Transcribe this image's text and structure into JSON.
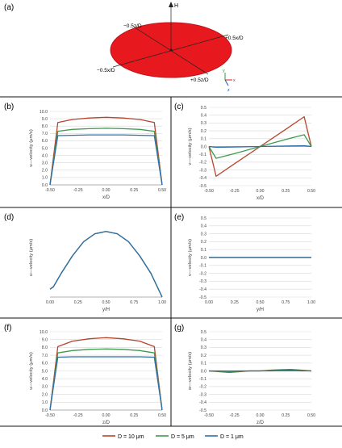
{
  "panels": {
    "a": "(a)",
    "b": "(b)",
    "c": "(c)",
    "d": "(d)",
    "e": "(e)",
    "f": "(f)",
    "g": "(g)"
  },
  "disk": {
    "fill_color": "#e8191e",
    "labels": {
      "H": "H",
      "top_left": "−0.5z/D",
      "right": "+0.5x/D",
      "left": "−0.5x/D",
      "bottom_right": "+0.5z/D",
      "axis_y": "y",
      "axis_x": "x",
      "axis_z": "z"
    }
  },
  "legend": {
    "entries": [
      {
        "label": "D = 10 μm",
        "color": "#b5452d"
      },
      {
        "label": "D = 5 μm",
        "color": "#3e9b4c"
      },
      {
        "label": "D = 1 μm",
        "color": "#2f6fae"
      }
    ]
  },
  "chart_data": [
    {
      "panel": "b",
      "type": "line",
      "xlabel": "x/D",
      "ylabel": "u—velocity (μm/s)",
      "xlim": [
        -0.5,
        0.5
      ],
      "ylim": [
        0,
        10
      ],
      "xticks": [
        "-0.50",
        "-0.25",
        "0.00",
        "0.25",
        "0.50"
      ],
      "yticks": [
        "0.0",
        "1.0",
        "2.0",
        "3.0",
        "4.0",
        "5.0",
        "6.0",
        "7.0",
        "8.0",
        "9.0",
        "10.0"
      ],
      "series": [
        {
          "name": "D = 10 μm",
          "color": "#b5452d",
          "x": [
            -0.5,
            -0.43,
            -0.3,
            -0.15,
            0,
            0.15,
            0.3,
            0.43,
            0.5
          ],
          "y": [
            0,
            8.5,
            8.9,
            9.1,
            9.2,
            9.1,
            8.9,
            8.5,
            0
          ]
        },
        {
          "name": "D = 5 μm",
          "color": "#3e9b4c",
          "x": [
            -0.5,
            -0.43,
            -0.3,
            -0.15,
            0,
            0.15,
            0.3,
            0.43,
            0.5
          ],
          "y": [
            0,
            7.3,
            7.55,
            7.65,
            7.7,
            7.65,
            7.55,
            7.3,
            0
          ]
        },
        {
          "name": "D = 1 μm",
          "color": "#2f6fae",
          "x": [
            -0.5,
            -0.43,
            -0.3,
            -0.15,
            0,
            0.15,
            0.3,
            0.43,
            0.5
          ],
          "y": [
            0,
            6.7,
            6.75,
            6.8,
            6.8,
            6.8,
            6.75,
            6.7,
            0
          ]
        }
      ]
    },
    {
      "panel": "c",
      "type": "line",
      "xlabel": "x/D",
      "ylabel": "v—velocity (μm/s)",
      "xlim": [
        -0.5,
        0.5
      ],
      "ylim": [
        -0.5,
        0.5
      ],
      "xticks": [
        "-0.50",
        "-0.25",
        "0.00",
        "0.25",
        "0.50"
      ],
      "yticks": [
        "-0.5",
        "-0.4",
        "-0.3",
        "-0.2",
        "-0.1",
        "0.0",
        "0.1",
        "0.2",
        "0.3",
        "0.4",
        "0.5"
      ],
      "series": [
        {
          "name": "D = 10 μm",
          "color": "#b5452d",
          "x": [
            -0.5,
            -0.43,
            -0.25,
            0,
            0.25,
            0.43,
            0.5
          ],
          "y": [
            0,
            -0.38,
            -0.22,
            0,
            0.22,
            0.38,
            0
          ]
        },
        {
          "name": "D = 5 μm",
          "color": "#3e9b4c",
          "x": [
            -0.5,
            -0.43,
            -0.25,
            0,
            0.25,
            0.43,
            0.5
          ],
          "y": [
            0,
            -0.15,
            -0.09,
            0,
            0.09,
            0.15,
            0
          ]
        },
        {
          "name": "D = 1 μm",
          "color": "#2f6fae",
          "x": [
            -0.5,
            -0.43,
            -0.25,
            0,
            0.25,
            0.43,
            0.5
          ],
          "y": [
            0,
            -0.01,
            -0.006,
            0,
            0.006,
            0.01,
            0
          ]
        }
      ]
    },
    {
      "panel": "d",
      "type": "line",
      "xlabel": "y/H",
      "ylabel": "u—velocity (μm/s)",
      "xlim": [
        0,
        1
      ],
      "ylim": [
        0,
        100
      ],
      "xticks": [
        "0.00",
        "0.25",
        "0.50",
        "0.75",
        "1.00"
      ],
      "yticks": [],
      "series": [
        {
          "name": "D = 10 μm",
          "color": "#b5452d",
          "x": [
            0,
            0.03,
            0.1,
            0.2,
            0.3,
            0.4,
            0.5,
            0.6,
            0.7,
            0.8,
            0.9,
            1.0
          ],
          "y": [
            10,
            13,
            30,
            52,
            70,
            80,
            83,
            80,
            70,
            52,
            30,
            0
          ]
        },
        {
          "name": "D = 5 μm",
          "color": "#3e9b4c",
          "x": [
            0,
            0.03,
            0.1,
            0.2,
            0.3,
            0.4,
            0.5,
            0.6,
            0.7,
            0.8,
            0.9,
            1.0
          ],
          "y": [
            10,
            13,
            30,
            52,
            70,
            80,
            83,
            80,
            70,
            52,
            30,
            0
          ]
        },
        {
          "name": "D = 1 μm",
          "color": "#2f6fae",
          "x": [
            0,
            0.03,
            0.1,
            0.2,
            0.3,
            0.4,
            0.5,
            0.6,
            0.7,
            0.8,
            0.9,
            1.0
          ],
          "y": [
            10,
            13,
            30,
            52,
            70,
            80,
            83,
            80,
            70,
            52,
            30,
            0
          ]
        }
      ]
    },
    {
      "panel": "e",
      "type": "line",
      "xlabel": "y/H",
      "ylabel": "v—velocity (μm/s)",
      "xlim": [
        0,
        1
      ],
      "ylim": [
        -0.5,
        0.5
      ],
      "xticks": [
        "0.00",
        "0.25",
        "0.50",
        "0.75",
        "1.00"
      ],
      "yticks": [
        "-0.5",
        "-0.4",
        "-0.3",
        "-0.2",
        "-0.1",
        "0.0",
        "0.1",
        "0.2",
        "0.3",
        "0.4",
        "0.5"
      ],
      "series": [
        {
          "name": "D = 10 μm",
          "color": "#b5452d",
          "x": [
            0,
            1
          ],
          "y": [
            0,
            0
          ]
        },
        {
          "name": "D = 5 μm",
          "color": "#3e9b4c",
          "x": [
            0,
            1
          ],
          "y": [
            0,
            0
          ]
        },
        {
          "name": "D = 1 μm",
          "color": "#2f6fae",
          "x": [
            0,
            1
          ],
          "y": [
            0,
            0
          ]
        }
      ]
    },
    {
      "panel": "f",
      "type": "line",
      "xlabel": "z/D",
      "ylabel": "u—velocity (μm/s)",
      "xlim": [
        -0.5,
        0.5
      ],
      "ylim": [
        0,
        10
      ],
      "xticks": [
        "-0.50",
        "-0.25",
        "0.00",
        "0.25",
        "0.50"
      ],
      "yticks": [
        "0.0",
        "1.0",
        "2.0",
        "3.0",
        "4.0",
        "5.0",
        "6.0",
        "7.0",
        "8.0",
        "9.0",
        "10.0"
      ],
      "series": [
        {
          "name": "D = 10 μm",
          "color": "#b5452d",
          "x": [
            -0.5,
            -0.43,
            -0.3,
            -0.15,
            0,
            0.15,
            0.3,
            0.43,
            0.5
          ],
          "y": [
            0,
            8.1,
            8.8,
            9.1,
            9.25,
            9.1,
            8.8,
            8.1,
            0
          ]
        },
        {
          "name": "D = 5 μm",
          "color": "#3e9b4c",
          "x": [
            -0.5,
            -0.43,
            -0.3,
            -0.15,
            0,
            0.15,
            0.3,
            0.43,
            0.5
          ],
          "y": [
            0,
            7.3,
            7.6,
            7.75,
            7.8,
            7.75,
            7.6,
            7.3,
            0
          ]
        },
        {
          "name": "D = 1 μm",
          "color": "#2f6fae",
          "x": [
            -0.5,
            -0.43,
            -0.3,
            -0.15,
            0,
            0.15,
            0.3,
            0.43,
            0.5
          ],
          "y": [
            0,
            6.75,
            6.8,
            6.8,
            6.8,
            6.8,
            6.8,
            6.75,
            0
          ]
        }
      ]
    },
    {
      "panel": "g",
      "type": "line",
      "xlabel": "z/D",
      "ylabel": "w—velocity (μm/s)",
      "xlim": [
        -0.5,
        0.5
      ],
      "ylim": [
        -0.5,
        0.5
      ],
      "xticks": [
        "-0.50",
        "-0.25",
        "0.00",
        "0.25",
        "0.50"
      ],
      "yticks": [
        "-0.5",
        "-0.4",
        "-0.3",
        "-0.2",
        "-0.1",
        "0.0",
        "0.1",
        "0.2",
        "0.3",
        "0.4",
        "0.5"
      ],
      "series": [
        {
          "name": "D = 10 μm",
          "color": "#b5452d",
          "x": [
            -0.5,
            -0.4,
            -0.3,
            -0.2,
            -0.1,
            0,
            0.1,
            0.2,
            0.3,
            0.4,
            0.5
          ],
          "y": [
            0,
            -0.01,
            -0.02,
            -0.01,
            0,
            0,
            0.01,
            0.015,
            0.02,
            0.01,
            0
          ]
        },
        {
          "name": "D = 5 μm",
          "color": "#3e9b4c",
          "x": [
            -0.5,
            -0.4,
            -0.3,
            -0.2,
            -0.1,
            0,
            0.1,
            0.2,
            0.3,
            0.4,
            0.5
          ],
          "y": [
            0,
            -0.005,
            -0.01,
            -0.005,
            0,
            0,
            0.005,
            0.01,
            0.012,
            0.005,
            0
          ]
        },
        {
          "name": "D = 1 μm",
          "color": "#2f6fae",
          "x": [
            -0.5,
            -0.4,
            -0.3,
            -0.2,
            -0.1,
            0,
            0.1,
            0.2,
            0.3,
            0.4,
            0.5
          ],
          "y": [
            0,
            0,
            -0.002,
            0,
            0,
            0,
            0,
            0.002,
            0.003,
            0,
            0
          ]
        }
      ]
    }
  ]
}
